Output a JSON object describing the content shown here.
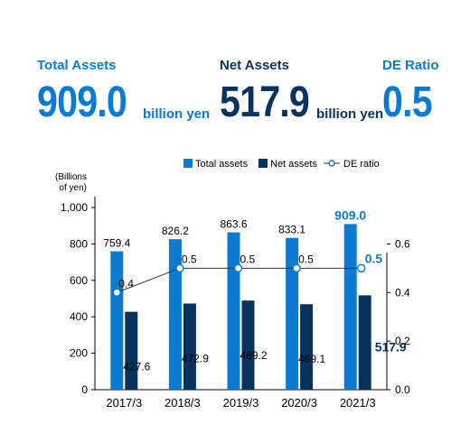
{
  "kpis": {
    "total_assets": {
      "label": "Total Assets",
      "value": "909.0",
      "unit": "billion yen"
    },
    "net_assets": {
      "label": "Net Assets",
      "value": "517.9",
      "unit": "billion yen"
    },
    "de_ratio": {
      "label": "DE Ratio",
      "value": "0.5"
    }
  },
  "colors": {
    "total_assets": "#0b7ad1",
    "net_assets": "#08325f",
    "de_ratio_line": "#333333",
    "de_ratio_marker": "#0b7ad1",
    "highlight_text": "#0b7ad1",
    "axis": "#000000"
  },
  "chart_data": {
    "type": "bar",
    "categories": [
      "2017/3",
      "2018/3",
      "2019/3",
      "2020/3",
      "2021/3"
    ],
    "series": [
      {
        "name": "Total assets",
        "kind": "bar",
        "axis": "left",
        "values": [
          759.4,
          826.2,
          863.6,
          833.1,
          909.0
        ],
        "labels": [
          "759.4",
          "826.2",
          "863.6",
          "833.1",
          "909.0"
        ]
      },
      {
        "name": "Net assets",
        "kind": "bar",
        "axis": "left",
        "values": [
          427.6,
          472.9,
          489.2,
          469.1,
          517.9
        ],
        "labels": [
          "427.6",
          "472.9",
          "489.2",
          "469.1",
          "517.9"
        ]
      },
      {
        "name": "DE ratio",
        "kind": "line",
        "axis": "right",
        "values": [
          0.4,
          0.5,
          0.5,
          0.5,
          0.5
        ],
        "labels": [
          "0.4",
          "0.5",
          "0.5",
          "0.5",
          "0.5"
        ]
      }
    ],
    "ylabel": "(Billions\nof yen)",
    "ylim": [
      0,
      1000
    ],
    "yticks": [
      "0",
      "200",
      "400",
      "600",
      "800",
      "1,000"
    ],
    "y2lim": [
      0,
      0.75
    ],
    "y2ticks": [
      "0.0",
      "0.2",
      "0.4",
      "0.6"
    ],
    "legend_position": "top",
    "grid": false
  }
}
